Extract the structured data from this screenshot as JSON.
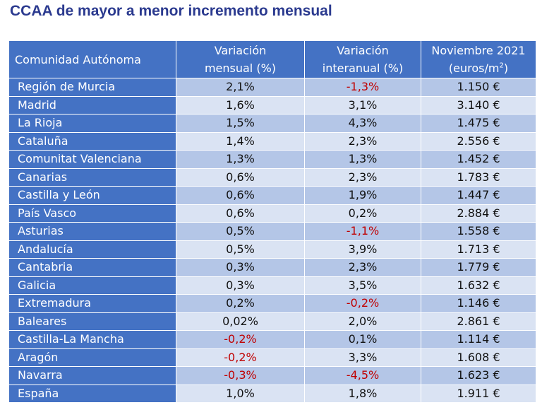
{
  "title": "CCAA de mayor a menor incremento mensual",
  "table": {
    "headers": {
      "col0": "Comunidad Autónoma",
      "col1_line1": "Variación",
      "col1_line2": "mensual (%)",
      "col2_line1": "Variación",
      "col2_line2": "interanual (%)",
      "col3_line1": "Noviembre 2021",
      "col3_line2": "(euros/m",
      "col3_sup": "2",
      "col3_close": ")"
    },
    "rows": [
      {
        "region": "Región de Murcia",
        "mensual": "2,1%",
        "interanual": "-1,3%",
        "precio": "1.150 €"
      },
      {
        "region": "Madrid",
        "mensual": "1,6%",
        "interanual": "3,1%",
        "precio": "3.140 €"
      },
      {
        "region": "La Rioja",
        "mensual": "1,5%",
        "interanual": "4,3%",
        "precio": "1.475 €"
      },
      {
        "region": "Cataluña",
        "mensual": "1,4%",
        "interanual": "2,3%",
        "precio": "2.556 €"
      },
      {
        "region": "Comunitat Valenciana",
        "mensual": "1,3%",
        "interanual": "1,3%",
        "precio": "1.452 €"
      },
      {
        "region": "Canarias",
        "mensual": "0,6%",
        "interanual": "2,3%",
        "precio": "1.783 €"
      },
      {
        "region": "Castilla y León",
        "mensual": "0,6%",
        "interanual": "1,9%",
        "precio": "1.447 €"
      },
      {
        "region": "País Vasco",
        "mensual": "0,6%",
        "interanual": "0,2%",
        "precio": "2.884 €"
      },
      {
        "region": "Asturias",
        "mensual": "0,5%",
        "interanual": "-1,1%",
        "precio": "1.558 €"
      },
      {
        "region": "Andalucía",
        "mensual": "0,5%",
        "interanual": "3,9%",
        "precio": "1.713 €"
      },
      {
        "region": "Cantabria",
        "mensual": "0,3%",
        "interanual": "2,3%",
        "precio": "1.779 €"
      },
      {
        "region": "Galicia",
        "mensual": "0,3%",
        "interanual": "3,5%",
        "precio": "1.632 €"
      },
      {
        "region": "Extremadura",
        "mensual": "0,2%",
        "interanual": "-0,2%",
        "precio": "1.146 €"
      },
      {
        "region": "Baleares",
        "mensual": "0,02%",
        "interanual": "2,0%",
        "precio": "2.861 €"
      },
      {
        "region": "Castilla-La Mancha",
        "mensual": "-0,2%",
        "interanual": "0,1%",
        "precio": "1.114 €"
      },
      {
        "region": "Aragón",
        "mensual": "-0,2%",
        "interanual": "3,3%",
        "precio": "1.608 €"
      },
      {
        "region": "Navarra",
        "mensual": "-0,3%",
        "interanual": "-4,5%",
        "precio": "1.623 €"
      },
      {
        "region": "España",
        "mensual": "1,0%",
        "interanual": "1,8%",
        "precio": "1.911 €"
      }
    ]
  },
  "colors": {
    "title": "#2b3a8f",
    "header_bg": "#4472c4",
    "row_dark": "#b4c6e7",
    "row_light": "#dae3f3",
    "negative": "#c00000"
  }
}
